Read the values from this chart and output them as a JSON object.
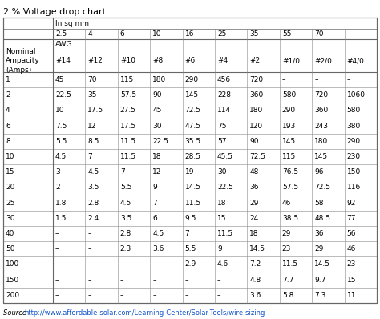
{
  "title": "2 % Voltage drop chart",
  "source_text": "Source ",
  "source_url": "http://www.affordable-solar.com/Learning-Center/Solar-Tools/wire-sizing",
  "sqmm_label": "In sq mm",
  "awg_label": "AWG",
  "sqmm_cols": [
    "2.5",
    "4",
    "6",
    "10",
    "16",
    "25",
    "35",
    "55",
    "70",
    ""
  ],
  "awg_cols": [
    "#14",
    "#12",
    "#10",
    "#8",
    "#6",
    "#4",
    "#2",
    "#1/0",
    "#2/0",
    "#4/0"
  ],
  "row_header": "Nominal\nAmpacity\n(Amps)",
  "row_labels": [
    "1",
    "2",
    "4",
    "6",
    "8",
    "10",
    "15",
    "20",
    "25",
    "30",
    "40",
    "50",
    "100",
    "150",
    "200"
  ],
  "table_data": [
    [
      "45",
      "70",
      "115",
      "180",
      "290",
      "456",
      "720",
      "–",
      "–",
      "–"
    ],
    [
      "22.5",
      "35",
      "57.5",
      "90",
      "145",
      "228",
      "360",
      "580",
      "720",
      "1060"
    ],
    [
      "10",
      "17.5",
      "27.5",
      "45",
      "72.5",
      "114",
      "180",
      "290",
      "360",
      "580"
    ],
    [
      "7.5",
      "12",
      "17.5",
      "30",
      "47.5",
      "75",
      "120",
      "193",
      "243",
      "380"
    ],
    [
      "5.5",
      "8.5",
      "11.5",
      "22.5",
      "35.5",
      "57",
      "90",
      "145",
      "180",
      "290"
    ],
    [
      "4.5",
      "7",
      "11.5",
      "18",
      "28.5",
      "45.5",
      "72.5",
      "115",
      "145",
      "230"
    ],
    [
      "3",
      "4.5",
      "7",
      "12",
      "19",
      "30",
      "48",
      "76.5",
      "96",
      "150"
    ],
    [
      "2",
      "3.5",
      "5.5",
      "9",
      "14.5",
      "22.5",
      "36",
      "57.5",
      "72.5",
      "116"
    ],
    [
      "1.8",
      "2.8",
      "4.5",
      "7",
      "11.5",
      "18",
      "29",
      "46",
      "58",
      "92"
    ],
    [
      "1.5",
      "2.4",
      "3.5",
      "6",
      "9.5",
      "15",
      "24",
      "38.5",
      "48.5",
      "77"
    ],
    [
      "–",
      "–",
      "2.8",
      "4.5",
      "7",
      "11.5",
      "18",
      "29",
      "36",
      "56"
    ],
    [
      "–",
      "–",
      "2.3",
      "3.6",
      "5.5",
      "9",
      "14.5",
      "23",
      "29",
      "46"
    ],
    [
      "–",
      "–",
      "–",
      "–",
      "2.9",
      "4.6",
      "7.2",
      "11.5",
      "14.5",
      "23"
    ],
    [
      "–",
      "–",
      "–",
      "–",
      "–",
      "–",
      "4.8",
      "7.7",
      "9.7",
      "15"
    ],
    [
      "–",
      "–",
      "–",
      "–",
      "–",
      "–",
      "3.6",
      "5.8",
      "7.3",
      "11"
    ]
  ],
  "bg_color": "#ffffff",
  "title_fontsize": 8,
  "cell_fontsize": 6.5,
  "header_fontsize": 6.5,
  "source_fontsize": 6
}
